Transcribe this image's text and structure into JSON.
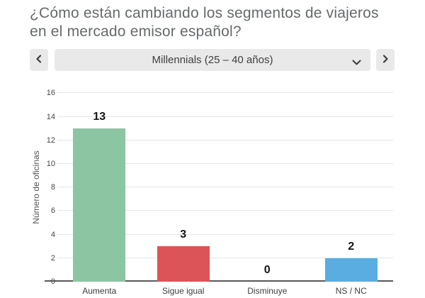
{
  "header": {
    "title": "¿Cómo están cambiando los segmentos de viajeros en el mercado emisor español?"
  },
  "segment_selector": {
    "selected": "Millennials (25 – 40 años)",
    "prev_icon": "chevron-left",
    "next_icon": "chevron-right",
    "dropdown_icon": "chevron-down"
  },
  "chart_data": {
    "type": "bar",
    "categories": [
      "Aumenta",
      "Sigue igual",
      "Disminuye",
      "NS / NC"
    ],
    "values": [
      13,
      3,
      0,
      2
    ],
    "value_labels": [
      "13",
      "3",
      "0",
      "2"
    ],
    "bar_colors": [
      "#8bc5a2",
      "#dc5458",
      "#bdbdbd",
      "#59ade0"
    ],
    "title": "",
    "xlabel": "",
    "ylabel": "Número de oficinas",
    "ylim": [
      0,
      16
    ],
    "ytick_step": 2,
    "grid": true,
    "legend": "none"
  },
  "colors": {
    "background": "#ffffff",
    "title_text": "#66696b",
    "control_background": "#e9e9e9",
    "control_text": "#3f3f3f",
    "gridline": "#e6e6e6",
    "axis_line": "#58585a",
    "axis_text": "#555555",
    "value_label_text": "#141414"
  }
}
